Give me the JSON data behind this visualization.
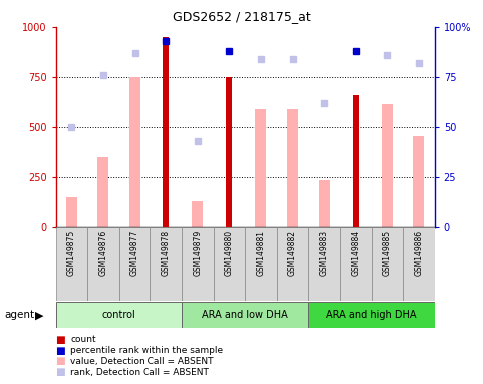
{
  "title": "GDS2652 / 218175_at",
  "samples": [
    "GSM149875",
    "GSM149876",
    "GSM149877",
    "GSM149878",
    "GSM149879",
    "GSM149880",
    "GSM149881",
    "GSM149882",
    "GSM149883",
    "GSM149884",
    "GSM149885",
    "GSM149886"
  ],
  "count_values": [
    null,
    null,
    null,
    950,
    null,
    750,
    null,
    null,
    null,
    660,
    null,
    null
  ],
  "value_absent": [
    150,
    350,
    750,
    null,
    130,
    null,
    590,
    590,
    235,
    null,
    615,
    455
  ],
  "percentile_rank": [
    null,
    null,
    null,
    93,
    null,
    88,
    null,
    null,
    null,
    88,
    null,
    null
  ],
  "rank_absent": [
    50,
    76,
    87,
    null,
    43,
    null,
    84,
    84,
    62,
    null,
    86,
    82
  ],
  "groups": [
    {
      "label": "control",
      "start": 0,
      "end": 3,
      "color": "#c8f5c8"
    },
    {
      "label": "ARA and low DHA",
      "start": 4,
      "end": 7,
      "color": "#a0e8a0"
    },
    {
      "label": "ARA and high DHA",
      "start": 8,
      "end": 11,
      "color": "#40d840"
    }
  ],
  "ylim": [
    0,
    1000
  ],
  "y2lim": [
    0,
    100
  ],
  "yticks": [
    0,
    250,
    500,
    750,
    1000
  ],
  "y2ticks": [
    0,
    25,
    50,
    75,
    100
  ],
  "count_color": "#cc0000",
  "value_absent_color": "#ffb0b0",
  "rank_absent_color": "#c0c0e8",
  "percentile_color": "#0000cc",
  "legend_items": [
    {
      "color": "#cc0000",
      "label": "count",
      "marker": "s"
    },
    {
      "color": "#0000cc",
      "label": "percentile rank within the sample",
      "marker": "s"
    },
    {
      "color": "#ffb0b0",
      "label": "value, Detection Call = ABSENT",
      "marker": "s"
    },
    {
      "color": "#c0c0e8",
      "label": "rank, Detection Call = ABSENT",
      "marker": "s"
    }
  ]
}
